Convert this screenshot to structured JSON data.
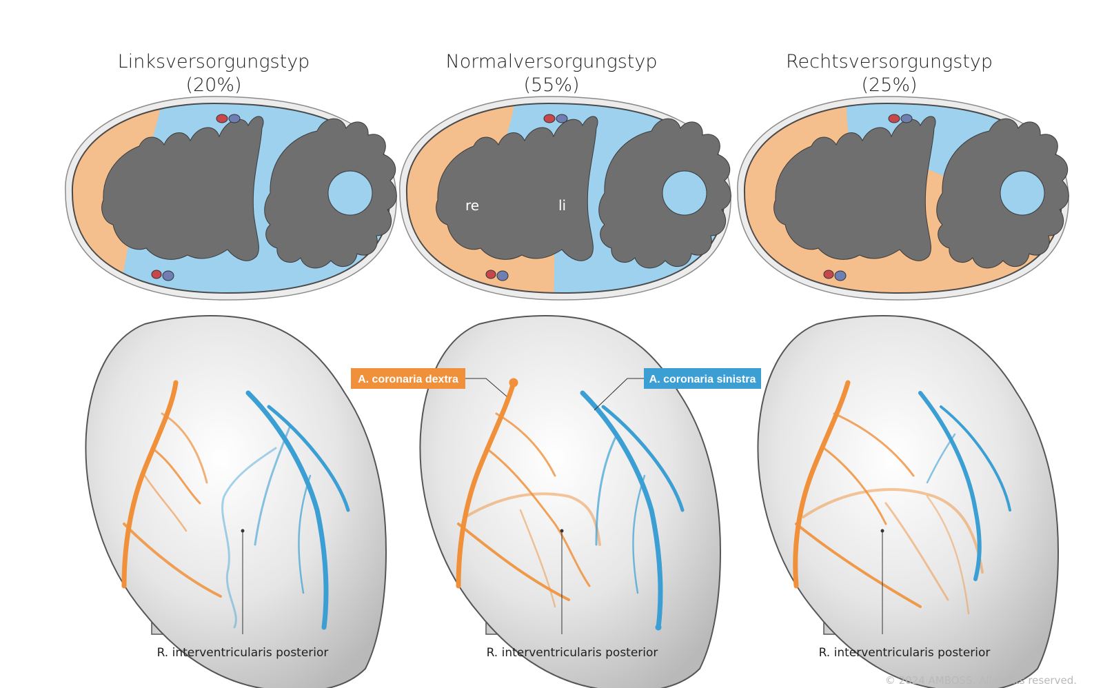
{
  "colors": {
    "right_coronary": "#f0903a",
    "right_coronary_fill": "#f5be8d",
    "left_coronary": "#3b9fd4",
    "left_coronary_fill": "#9dd1ed",
    "chamber": "#6f6f6f",
    "pericardium": "#ececec",
    "heart_surface": "#d9d9d9"
  },
  "panels": [
    {
      "title": "Linksversorgungstyp",
      "percentage": "(20%)",
      "pointer_label": "R. interventricularis posterior"
    },
    {
      "title": "Normalversorgungstyp",
      "percentage": "(55%)",
      "chamber_labels": {
        "right": "re",
        "left": "li"
      },
      "callouts": {
        "right_coronary": "A. coronaria dextra",
        "left_coronary": "A. coronaria sinistra"
      },
      "pointer_label": "R. interventricularis posterior"
    },
    {
      "title": "Rechtsversorgungstyp",
      "percentage": "(25%)",
      "pointer_label": "R. interventricularis posterior"
    }
  ],
  "copyright": "© 2024 AMBOSS. All rights reserved."
}
